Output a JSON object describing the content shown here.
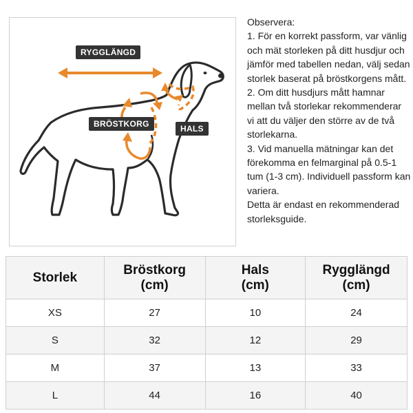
{
  "labels": {
    "back_length": "RYGGLÄNGD",
    "chest": "BRÖSTKORG",
    "neck": "HALS"
  },
  "notes": [
    "Observera:",
    "1. För en korrekt passform, var vänlig och mät storleken på ditt husdjur och jämför med tabellen nedan, välj sedan storlek baserat på bröstkorgens mått.",
    "2. Om ditt husdjurs mått hamnar mellan två storlekar rekommenderar vi att du väljer den större av de två storlekarna.",
    "3. Vid manuella mätningar kan det förekomma en felmarginal på 0.5-1 tum (1-3 cm). Individuell passform kan variera.",
    "Detta är endast en rekommenderad storleksguide."
  ],
  "table": {
    "headers": [
      {
        "line1": "Storlek",
        "line2": ""
      },
      {
        "line1": "Bröstkorg",
        "line2": "(cm)"
      },
      {
        "line1": "Hals",
        "line2": "(cm)"
      },
      {
        "line1": "Rygglängd",
        "line2": "(cm)"
      }
    ],
    "rows": [
      [
        "XS",
        "27",
        "10",
        "24"
      ],
      [
        "S",
        "32",
        "12",
        "29"
      ],
      [
        "M",
        "37",
        "13",
        "33"
      ],
      [
        "L",
        "44",
        "16",
        "40"
      ]
    ]
  },
  "colors": {
    "arrow": "#e8892b",
    "outline": "#2b2b2b",
    "label_bg": "#333333"
  }
}
